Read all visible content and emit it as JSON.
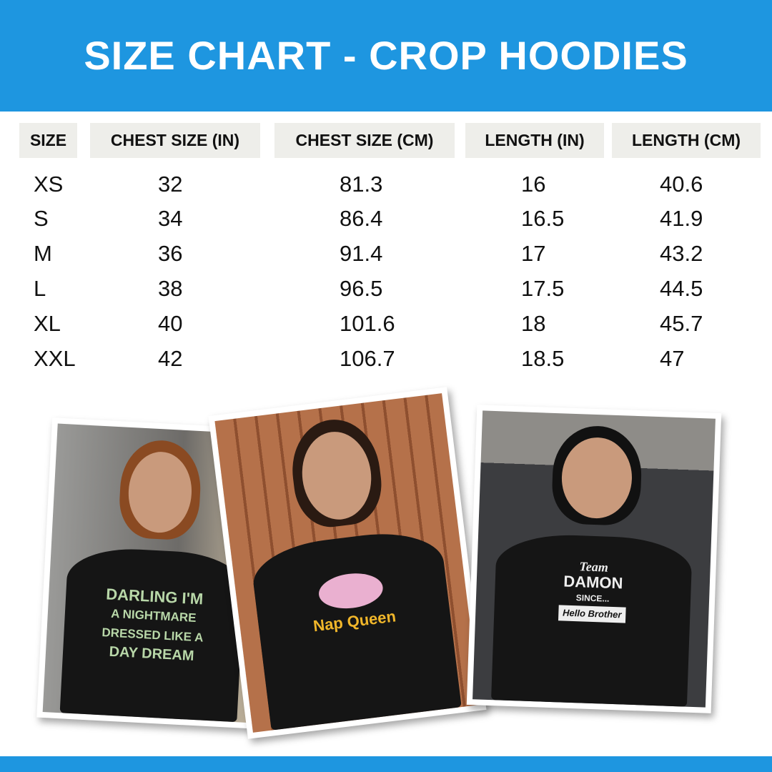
{
  "title": "SIZE CHART - CROP HOODIES",
  "colors": {
    "brand_blue": "#1e96e0",
    "header_cell_bg": "#eeeeea"
  },
  "table": {
    "headers": [
      "SIZE",
      "CHEST SIZE (IN)",
      "CHEST SIZE (CM)",
      "LENGTH (IN)",
      "LENGTH (CM)"
    ],
    "rows": [
      [
        "XS",
        "32",
        "81.3",
        "16",
        "40.6"
      ],
      [
        "S",
        "34",
        "86.4",
        "16.5",
        "41.9"
      ],
      [
        "M",
        "36",
        "91.4",
        "17",
        "43.2"
      ],
      [
        "L",
        "38",
        "96.5",
        "17.5",
        "44.5"
      ],
      [
        "XL",
        "40",
        "101.6",
        "18",
        "45.7"
      ],
      [
        "XXL",
        "42",
        "106.7",
        "18.5",
        "47"
      ]
    ]
  },
  "photos": [
    {
      "print_lines": [
        "DARLING I'M",
        "A NIGHTMARE",
        "DRESSED LIKE A",
        "DAY DREAM"
      ]
    },
    {
      "print_lines": [
        "Nap Queen"
      ]
    },
    {
      "print_lines": [
        "Team",
        "DAMON",
        "SINCE...",
        "Hello Brother"
      ]
    }
  ]
}
